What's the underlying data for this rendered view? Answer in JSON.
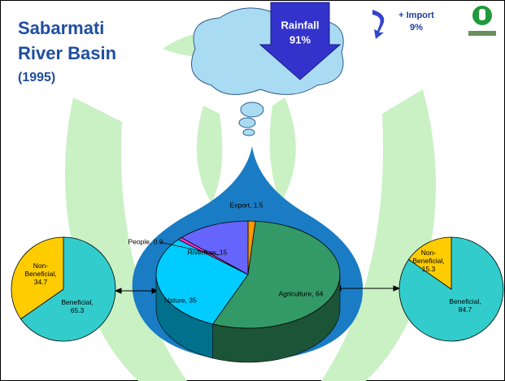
{
  "slide": {
    "title_lines": [
      "Sabarmati",
      "River Basin"
    ],
    "year": "(1995)",
    "rainfall": {
      "label": "Rainfall",
      "share": "91%"
    },
    "import": {
      "label": "+ Import",
      "share": "9%"
    }
  },
  "chart_data": [
    {
      "type": "pie",
      "depth3d": true,
      "values": [
        1.5,
        64,
        35,
        0.9,
        15
      ],
      "value_labels": [
        "Export, 1.5",
        "Agriculture, 64",
        "Nature, 35",
        "People, 0.9",
        "Riverflow, 15"
      ],
      "colors": [
        "#ff9900",
        "#339966",
        "#00ccff",
        "#ff33cc",
        "#6666ff"
      ]
    },
    {
      "type": "pie",
      "values": [
        65.3,
        34.7
      ],
      "value_labels": [
        "Beneficial,\n65.3",
        "Non-\nBeneficial,\n34.7"
      ],
      "colors": [
        "#33cccc",
        "#ffcc00"
      ]
    },
    {
      "type": "pie",
      "values": [
        84.7,
        15.3
      ],
      "value_labels": [
        "Beneficial,\n84.7",
        "Non-\nBeneficial,\n15.3"
      ],
      "colors": [
        "#33cccc",
        "#ffcc00"
      ]
    }
  ]
}
